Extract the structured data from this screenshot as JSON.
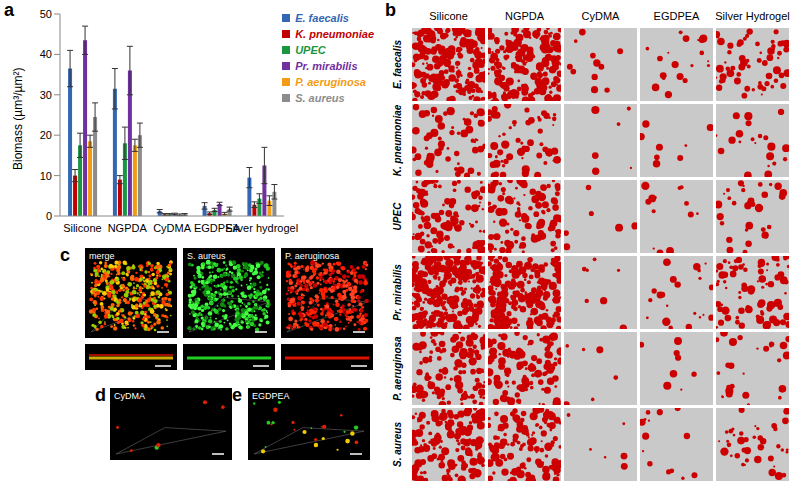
{
  "chart_data": {
    "type": "bar",
    "panel_label": "a",
    "y_label": "Biomass (µm³/µm²)",
    "categories": [
      "Silicone",
      "NGPDA",
      "CyDMA",
      "EGDPEA",
      "Silver hydrogel"
    ],
    "series": [
      {
        "name": "E. faecalis",
        "color": "#3366b3",
        "values": [
          36.5,
          31.5,
          1.2,
          2.5,
          9.5
        ],
        "errors": [
          4.5,
          5,
          0.4,
          0.8,
          2.5
        ]
      },
      {
        "name": "K. pneumoniae",
        "color": "#c00000",
        "values": [
          10,
          9,
          0.4,
          0.7,
          2.8
        ],
        "errors": [
          1.5,
          1,
          0.2,
          0.3,
          0.7
        ]
      },
      {
        "name": "UPEC",
        "color": "#1a9641",
        "values": [
          17.5,
          18,
          0.4,
          1.5,
          4.3
        ],
        "errors": [
          3,
          4,
          0.2,
          0.4,
          1.2
        ]
      },
      {
        "name": "Pr. mirabilis",
        "color": "#7030a0",
        "values": [
          43.5,
          36,
          0.5,
          3.0,
          12.5
        ],
        "errors": [
          3.5,
          6,
          0.2,
          0.4,
          4.5
        ]
      },
      {
        "name": "P. aeruginosa",
        "color": "#f39c12",
        "values": [
          18.5,
          17.5,
          0.3,
          0.6,
          3.8
        ],
        "errors": [
          1.5,
          1.5,
          0.2,
          0.3,
          1.2
        ]
      },
      {
        "name": "S. aureus",
        "color": "#8c8c8c",
        "values": [
          24.5,
          20,
          0.4,
          1.7,
          6
        ],
        "errors": [
          3.5,
          3,
          0.2,
          0.5,
          1.8
        ]
      }
    ],
    "ylim": [
      0,
      50
    ],
    "yticks": [
      0,
      10,
      20,
      30,
      40,
      50
    ],
    "grid": false,
    "legend": "top-right"
  },
  "panel_b": {
    "label": "b",
    "columns": [
      "Silicone",
      "NGPDA",
      "CyDMA",
      "EGDPEA",
      "Silver Hydrogel"
    ],
    "rows": [
      "E. faecalis",
      "K. pneumoniae",
      "UPEC",
      "Pr. mirabilis",
      "P. aeruginosa",
      "S. aureus"
    ]
  },
  "panel_c": {
    "label": "c",
    "views": [
      "merge",
      "S. aureus",
      "P. aeruginosa"
    ]
  },
  "panel_d": {
    "label": "d",
    "title": "CyDMA"
  },
  "panel_e": {
    "label": "e",
    "title": "EGDPEA"
  }
}
